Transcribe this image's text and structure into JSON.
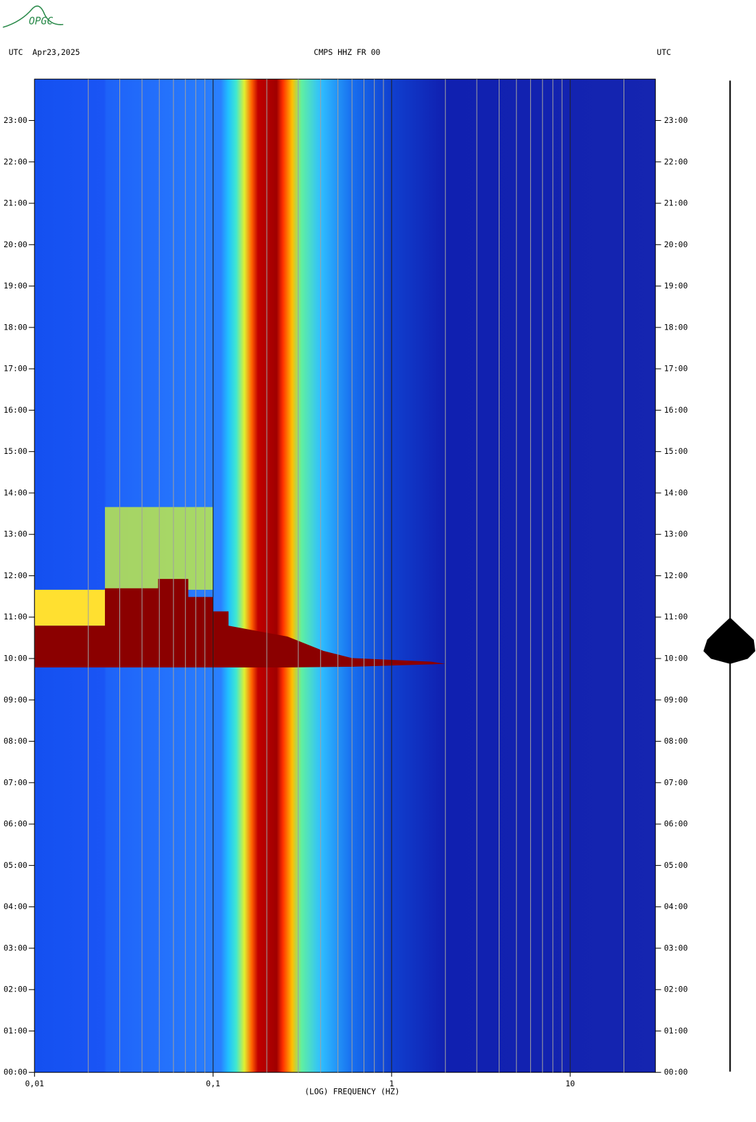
{
  "chart_data": {
    "type": "spectrogram",
    "logo": "OPGC",
    "title": "CMPS HHZ FR 00",
    "left_header": "UTC  Apr23,2025",
    "right_header": "UTC",
    "x_label": "(LOG) FREQUENCY (HZ)",
    "x_log": true,
    "xlim": [
      0.01,
      30
    ],
    "xticks": [
      {
        "value": 0.01,
        "label": "0,01"
      },
      {
        "value": 0.1,
        "label": "0,1"
      },
      1,
      10
    ],
    "xgrid": [
      0.02,
      0.03,
      0.04,
      0.05,
      0.06,
      0.07,
      0.08,
      0.09,
      0.2,
      0.3,
      0.4,
      0.5,
      0.6,
      0.7,
      0.8,
      0.9,
      2,
      3,
      4,
      5,
      6,
      7,
      8,
      9,
      20
    ],
    "ylim": [
      0,
      24
    ],
    "yticks": [
      {
        "value": 0,
        "label": "00:00"
      },
      {
        "value": 1,
        "label": "01:00"
      },
      {
        "value": 2,
        "label": "02:00"
      },
      {
        "value": 3,
        "label": "03:00"
      },
      {
        "value": 4,
        "label": "04:00"
      },
      {
        "value": 5,
        "label": "05:00"
      },
      {
        "value": 6,
        "label": "06:00"
      },
      {
        "value": 7,
        "label": "07:00"
      },
      {
        "value": 8,
        "label": "08:00"
      },
      {
        "value": 9,
        "label": "09:00"
      },
      {
        "value": 10,
        "label": "10:00"
      },
      {
        "value": 11,
        "label": "11:00"
      },
      {
        "value": 12,
        "label": "12:00"
      },
      {
        "value": 13,
        "label": "13:00"
      },
      {
        "value": 14,
        "label": "14:00"
      },
      {
        "value": 15,
        "label": "15:00"
      },
      {
        "value": 16,
        "label": "16:00"
      },
      {
        "value": 17,
        "label": "17:00"
      },
      {
        "value": 18,
        "label": "18:00"
      },
      {
        "value": 19,
        "label": "19:00"
      },
      {
        "value": 20,
        "label": "20:00"
      },
      {
        "value": 21,
        "label": "21:00"
      },
      {
        "value": 22,
        "label": "22:00"
      },
      {
        "value": 23,
        "label": "23:00"
      }
    ]
  }
}
